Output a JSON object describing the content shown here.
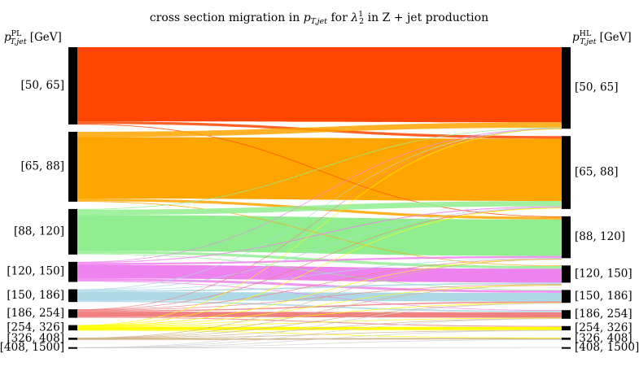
{
  "chart_data": {
    "type": "sankey",
    "title": "cross section migration in p_T,jet for λ_2^1 in Z + jet production",
    "title_parts": {
      "prefix": "cross section migration in ",
      "var": "p",
      "var_sub": "T,jet",
      "mid": " for ",
      "lambda": "λ",
      "lambda_sub": "2",
      "lambda_sup": "1",
      "suffix": " in Z + jet production"
    },
    "left_axis": {
      "var": "p",
      "sub": "T,jet",
      "sup": "PL",
      "unit": "[GeV]"
    },
    "right_axis": {
      "var": "p",
      "sub": "T,jet",
      "sup": "HL",
      "unit": "[GeV]"
    },
    "bins": [
      "[50, 65]",
      "[65, 88]",
      "[88, 120]",
      "[120, 150]",
      "[150, 186]",
      "[186, 254]",
      "[254, 326]",
      "[326, 408]",
      "[408, 1500]"
    ],
    "colors": [
      "#ff4500",
      "#ffa500",
      "#90ee90",
      "#ee82ee",
      "#add8e6",
      "#f08080",
      "#ffff00",
      "#d2b48c",
      "#d3d3d3"
    ],
    "left_totals": [
      73,
      66,
      43,
      19,
      12,
      8,
      5,
      2,
      1
    ],
    "right_totals": [
      76,
      68,
      39,
      16,
      12,
      8,
      4,
      2,
      1
    ],
    "flows": [
      {
        "from": 0,
        "to": 0,
        "value": 70
      },
      {
        "from": 0,
        "to": 1,
        "value": 2.5
      },
      {
        "from": 0,
        "to": 2,
        "value": 0.5
      },
      {
        "from": 1,
        "to": 0,
        "value": 5
      },
      {
        "from": 1,
        "to": 1,
        "value": 58
      },
      {
        "from": 1,
        "to": 2,
        "value": 2.5
      },
      {
        "from": 1,
        "to": 3,
        "value": 0.5
      },
      {
        "from": 2,
        "to": 0,
        "value": 0.6
      },
      {
        "from": 2,
        "to": 1,
        "value": 5
      },
      {
        "from": 2,
        "to": 2,
        "value": 34
      },
      {
        "from": 2,
        "to": 3,
        "value": 2.5
      },
      {
        "from": 2,
        "to": 4,
        "value": 0.5
      },
      {
        "from": 3,
        "to": 0,
        "value": 0.2
      },
      {
        "from": 3,
        "to": 1,
        "value": 0.8
      },
      {
        "from": 3,
        "to": 2,
        "value": 1.8
      },
      {
        "from": 3,
        "to": 3,
        "value": 13
      },
      {
        "from": 3,
        "to": 4,
        "value": 2.2
      },
      {
        "from": 3,
        "to": 5,
        "value": 0.6
      },
      {
        "from": 4,
        "to": 0,
        "value": 0.2
      },
      {
        "from": 4,
        "to": 1,
        "value": 0.4
      },
      {
        "from": 4,
        "to": 2,
        "value": 0.6
      },
      {
        "from": 4,
        "to": 3,
        "value": 1.4
      },
      {
        "from": 4,
        "to": 4,
        "value": 8
      },
      {
        "from": 4,
        "to": 5,
        "value": 1.4
      },
      {
        "from": 5,
        "to": 0,
        "value": 0.1
      },
      {
        "from": 5,
        "to": 1,
        "value": 0.2
      },
      {
        "from": 5,
        "to": 2,
        "value": 0.3
      },
      {
        "from": 5,
        "to": 3,
        "value": 0.5
      },
      {
        "from": 5,
        "to": 4,
        "value": 1.2
      },
      {
        "from": 5,
        "to": 5,
        "value": 5
      },
      {
        "from": 5,
        "to": 6,
        "value": 0.7
      },
      {
        "from": 6,
        "to": 0,
        "value": 0.1
      },
      {
        "from": 6,
        "to": 1,
        "value": 0.2
      },
      {
        "from": 6,
        "to": 2,
        "value": 0.2
      },
      {
        "from": 6,
        "to": 3,
        "value": 0.3
      },
      {
        "from": 6,
        "to": 4,
        "value": 0.3
      },
      {
        "from": 6,
        "to": 5,
        "value": 0.6
      },
      {
        "from": 6,
        "to": 6,
        "value": 3
      },
      {
        "from": 6,
        "to": 7,
        "value": 0.3
      },
      {
        "from": 7,
        "to": 2,
        "value": 0.1
      },
      {
        "from": 7,
        "to": 3,
        "value": 0.1
      },
      {
        "from": 7,
        "to": 4,
        "value": 0.1
      },
      {
        "from": 7,
        "to": 5,
        "value": 0.2
      },
      {
        "from": 7,
        "to": 6,
        "value": 0.2
      },
      {
        "from": 7,
        "to": 7,
        "value": 1.3
      },
      {
        "from": 8,
        "to": 4,
        "value": 0.1
      },
      {
        "from": 8,
        "to": 5,
        "value": 0.1
      },
      {
        "from": 8,
        "to": 6,
        "value": 0.1
      },
      {
        "from": 8,
        "to": 7,
        "value": 0.1
      },
      {
        "from": 8,
        "to": 8,
        "value": 0.6
      }
    ]
  }
}
